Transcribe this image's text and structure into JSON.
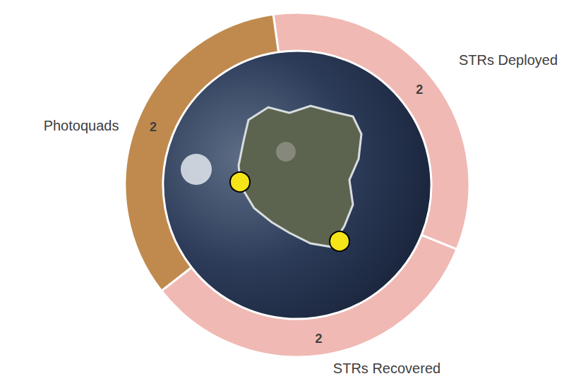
{
  "chart_data": {
    "type": "pie",
    "categories": [
      "STRs Deployed",
      "STRs Recovered",
      "Photoquads"
    ],
    "values": [
      2,
      2,
      2
    ],
    "colors": [
      "#f0b9b4",
      "#f0b9b4",
      "#c08a4e"
    ],
    "data_labels": true
  }
}
